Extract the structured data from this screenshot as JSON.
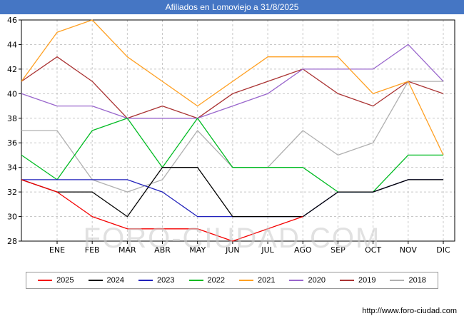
{
  "title_bar": {
    "title": "Afiliados en Lomoviejo a 31/8/2025"
  },
  "watermark": "FORO-CIUDAD.COM",
  "footer": {
    "url": "http://www.foro-ciudad.com"
  },
  "colors": {
    "titlebar_bg": "#4576c4",
    "grid": "#c8c8c8",
    "axis": "#000000"
  },
  "chart_data": {
    "type": "line",
    "title": "Afiliados en Lomoviejo a 31/8/2025",
    "xlabel": "",
    "ylabel": "",
    "ylim": [
      28,
      46
    ],
    "y_ticks": [
      28,
      30,
      32,
      34,
      36,
      38,
      40,
      42,
      44,
      46
    ],
    "grid": "dashed",
    "legend_position": "bottom",
    "categories": [
      "ENE",
      "FEB",
      "MAR",
      "ABR",
      "MAY",
      "JUN",
      "JUL",
      "AGO",
      "SEP",
      "OCT",
      "NOV",
      "DIC"
    ],
    "series": [
      {
        "name": "2025",
        "color": "#f40000",
        "edge_start": 33,
        "values": [
          32,
          30,
          29,
          29,
          29,
          28,
          29,
          30
        ]
      },
      {
        "name": "2024",
        "color": "#000000",
        "edge_start": 33,
        "values": [
          32,
          32,
          30,
          34,
          34,
          30,
          30,
          30,
          32,
          32,
          33,
          33
        ]
      },
      {
        "name": "2023",
        "color": "#2222bb",
        "edge_start": 33,
        "values": [
          33,
          33,
          33,
          32,
          30,
          30,
          30,
          30,
          32,
          32,
          33,
          33
        ]
      },
      {
        "name": "2022",
        "color": "#00bb22",
        "edge_start": 35,
        "values": [
          33,
          37,
          38,
          34,
          38,
          34,
          34,
          34,
          32,
          32,
          35,
          35
        ]
      },
      {
        "name": "2021",
        "color": "#ffa022",
        "edge_start": 41,
        "values": [
          45,
          46,
          43,
          41,
          39,
          41,
          43,
          43,
          43,
          40,
          41,
          35
        ]
      },
      {
        "name": "2020",
        "color": "#9966cc",
        "edge_start": 40,
        "values": [
          39,
          39,
          38,
          38,
          38,
          39,
          40,
          42,
          42,
          42,
          44,
          41
        ]
      },
      {
        "name": "2019",
        "color": "#aa3333",
        "edge_start": 41,
        "values": [
          43,
          41,
          38,
          39,
          38,
          40,
          41,
          42,
          40,
          39,
          41,
          40
        ]
      },
      {
        "name": "2018",
        "color": "#b0b0b0",
        "edge_start": 37,
        "values": [
          37,
          33,
          32,
          33,
          37,
          34,
          34,
          37,
          35,
          36,
          41,
          41
        ]
      }
    ]
  }
}
